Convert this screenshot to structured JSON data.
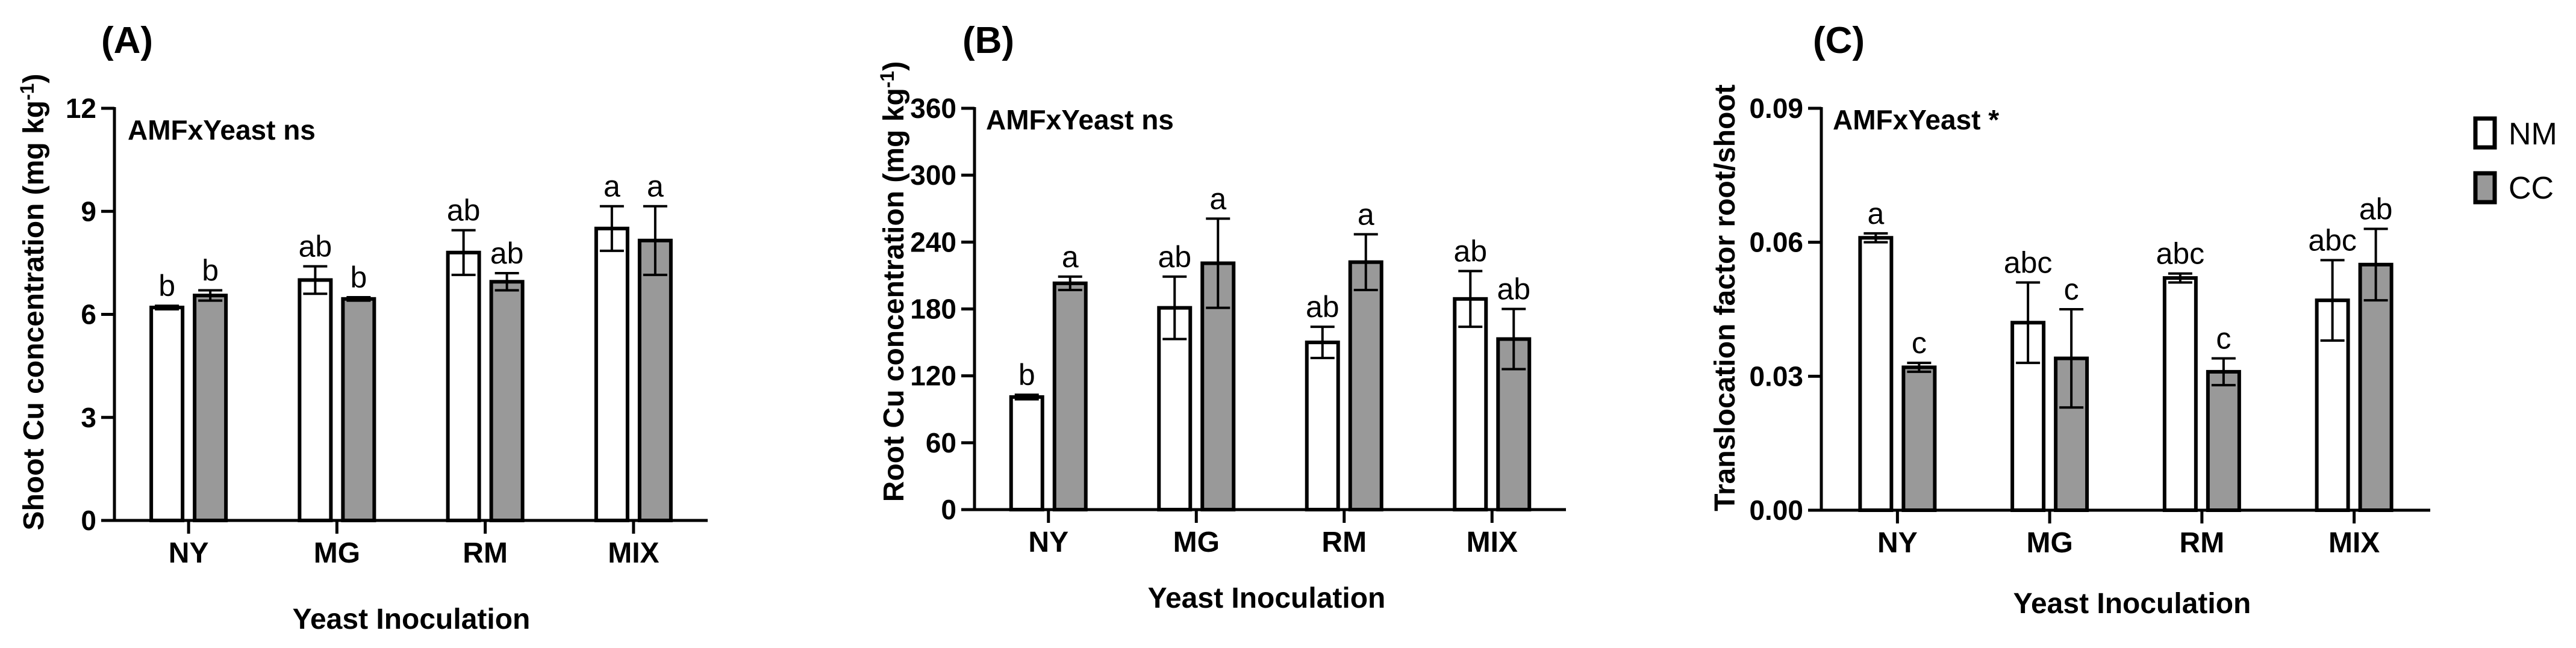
{
  "legend": {
    "position": "top-right",
    "items": [
      {
        "label": "NM",
        "color": "#ffffff"
      },
      {
        "label": "CC",
        "color": "#999999"
      }
    ]
  },
  "chart_data": [
    {
      "type": "bar",
      "panel_label": "(A)",
      "annotation": "AMFxYeast ns",
      "xlabel": "Yeast Inoculation",
      "ylabel": "Shoot Cu concentration (mg kg",
      "ylabel_sup": "-1",
      "ylabel_end": ")",
      "categories": [
        "NY",
        "MG",
        "RM",
        "MIX"
      ],
      "ylim": [
        0,
        12
      ],
      "yticks": [
        0,
        3,
        6,
        9,
        12
      ],
      "ytick_labels": [
        "0",
        "3",
        "6",
        "9",
        "12"
      ],
      "series": [
        {
          "name": "NM",
          "color": "#ffffff",
          "values": [
            6.2,
            7.0,
            7.8,
            8.5
          ],
          "errors": [
            0.05,
            0.4,
            0.65,
            0.65
          ],
          "letters": [
            "b",
            "ab",
            "ab",
            "a"
          ]
        },
        {
          "name": "CC",
          "color": "#999999",
          "values": [
            6.55,
            6.45,
            6.95,
            8.15
          ],
          "errors": [
            0.15,
            0.05,
            0.25,
            1.0
          ],
          "letters": [
            "b",
            "b",
            "ab",
            "a"
          ]
        }
      ]
    },
    {
      "type": "bar",
      "panel_label": "(B)",
      "annotation": "AMFxYeast ns",
      "xlabel": "Yeast Inoculation",
      "ylabel": "Root Cu concentration (mg kg",
      "ylabel_sup": "-1",
      "ylabel_end": ")",
      "categories": [
        "NY",
        "MG",
        "RM",
        "MIX"
      ],
      "ylim": [
        0,
        360
      ],
      "yticks": [
        0,
        60,
        120,
        180,
        240,
        300,
        360
      ],
      "ytick_labels": [
        "0",
        "60",
        "120",
        "180",
        "240",
        "300",
        "360"
      ],
      "series": [
        {
          "name": "NM",
          "color": "#ffffff",
          "values": [
            101,
            181,
            150,
            189
          ],
          "errors": [
            2,
            28,
            14,
            25
          ],
          "letters": [
            "b",
            "ab",
            "ab",
            "ab"
          ]
        },
        {
          "name": "CC",
          "color": "#999999",
          "values": [
            203,
            221,
            222,
            153
          ],
          "errors": [
            6,
            40,
            25,
            27
          ],
          "letters": [
            "a",
            "a",
            "a",
            "ab"
          ]
        }
      ]
    },
    {
      "type": "bar",
      "panel_label": "(C)",
      "annotation": "AMFxYeast *",
      "xlabel": "Yeast Inoculation",
      "ylabel": "Translocation factor root/shoot",
      "ylabel_sup": "",
      "ylabel_end": "",
      "categories": [
        "NY",
        "MG",
        "RM",
        "MIX"
      ],
      "ylim": [
        0,
        0.09
      ],
      "yticks": [
        0,
        0.03,
        0.06,
        0.09
      ],
      "ytick_labels": [
        "0.00",
        "0.03",
        "0.06",
        "0.09"
      ],
      "series": [
        {
          "name": "NM",
          "color": "#ffffff",
          "values": [
            0.061,
            0.042,
            0.052,
            0.047
          ],
          "errors": [
            0.001,
            0.009,
            0.001,
            0.009
          ],
          "letters": [
            "a",
            "abc",
            "abc",
            "abc"
          ]
        },
        {
          "name": "CC",
          "color": "#999999",
          "values": [
            0.032,
            0.034,
            0.031,
            0.055
          ],
          "errors": [
            0.001,
            0.011,
            0.003,
            0.008
          ],
          "letters": [
            "c",
            "c",
            "c",
            "ab"
          ]
        }
      ]
    }
  ]
}
